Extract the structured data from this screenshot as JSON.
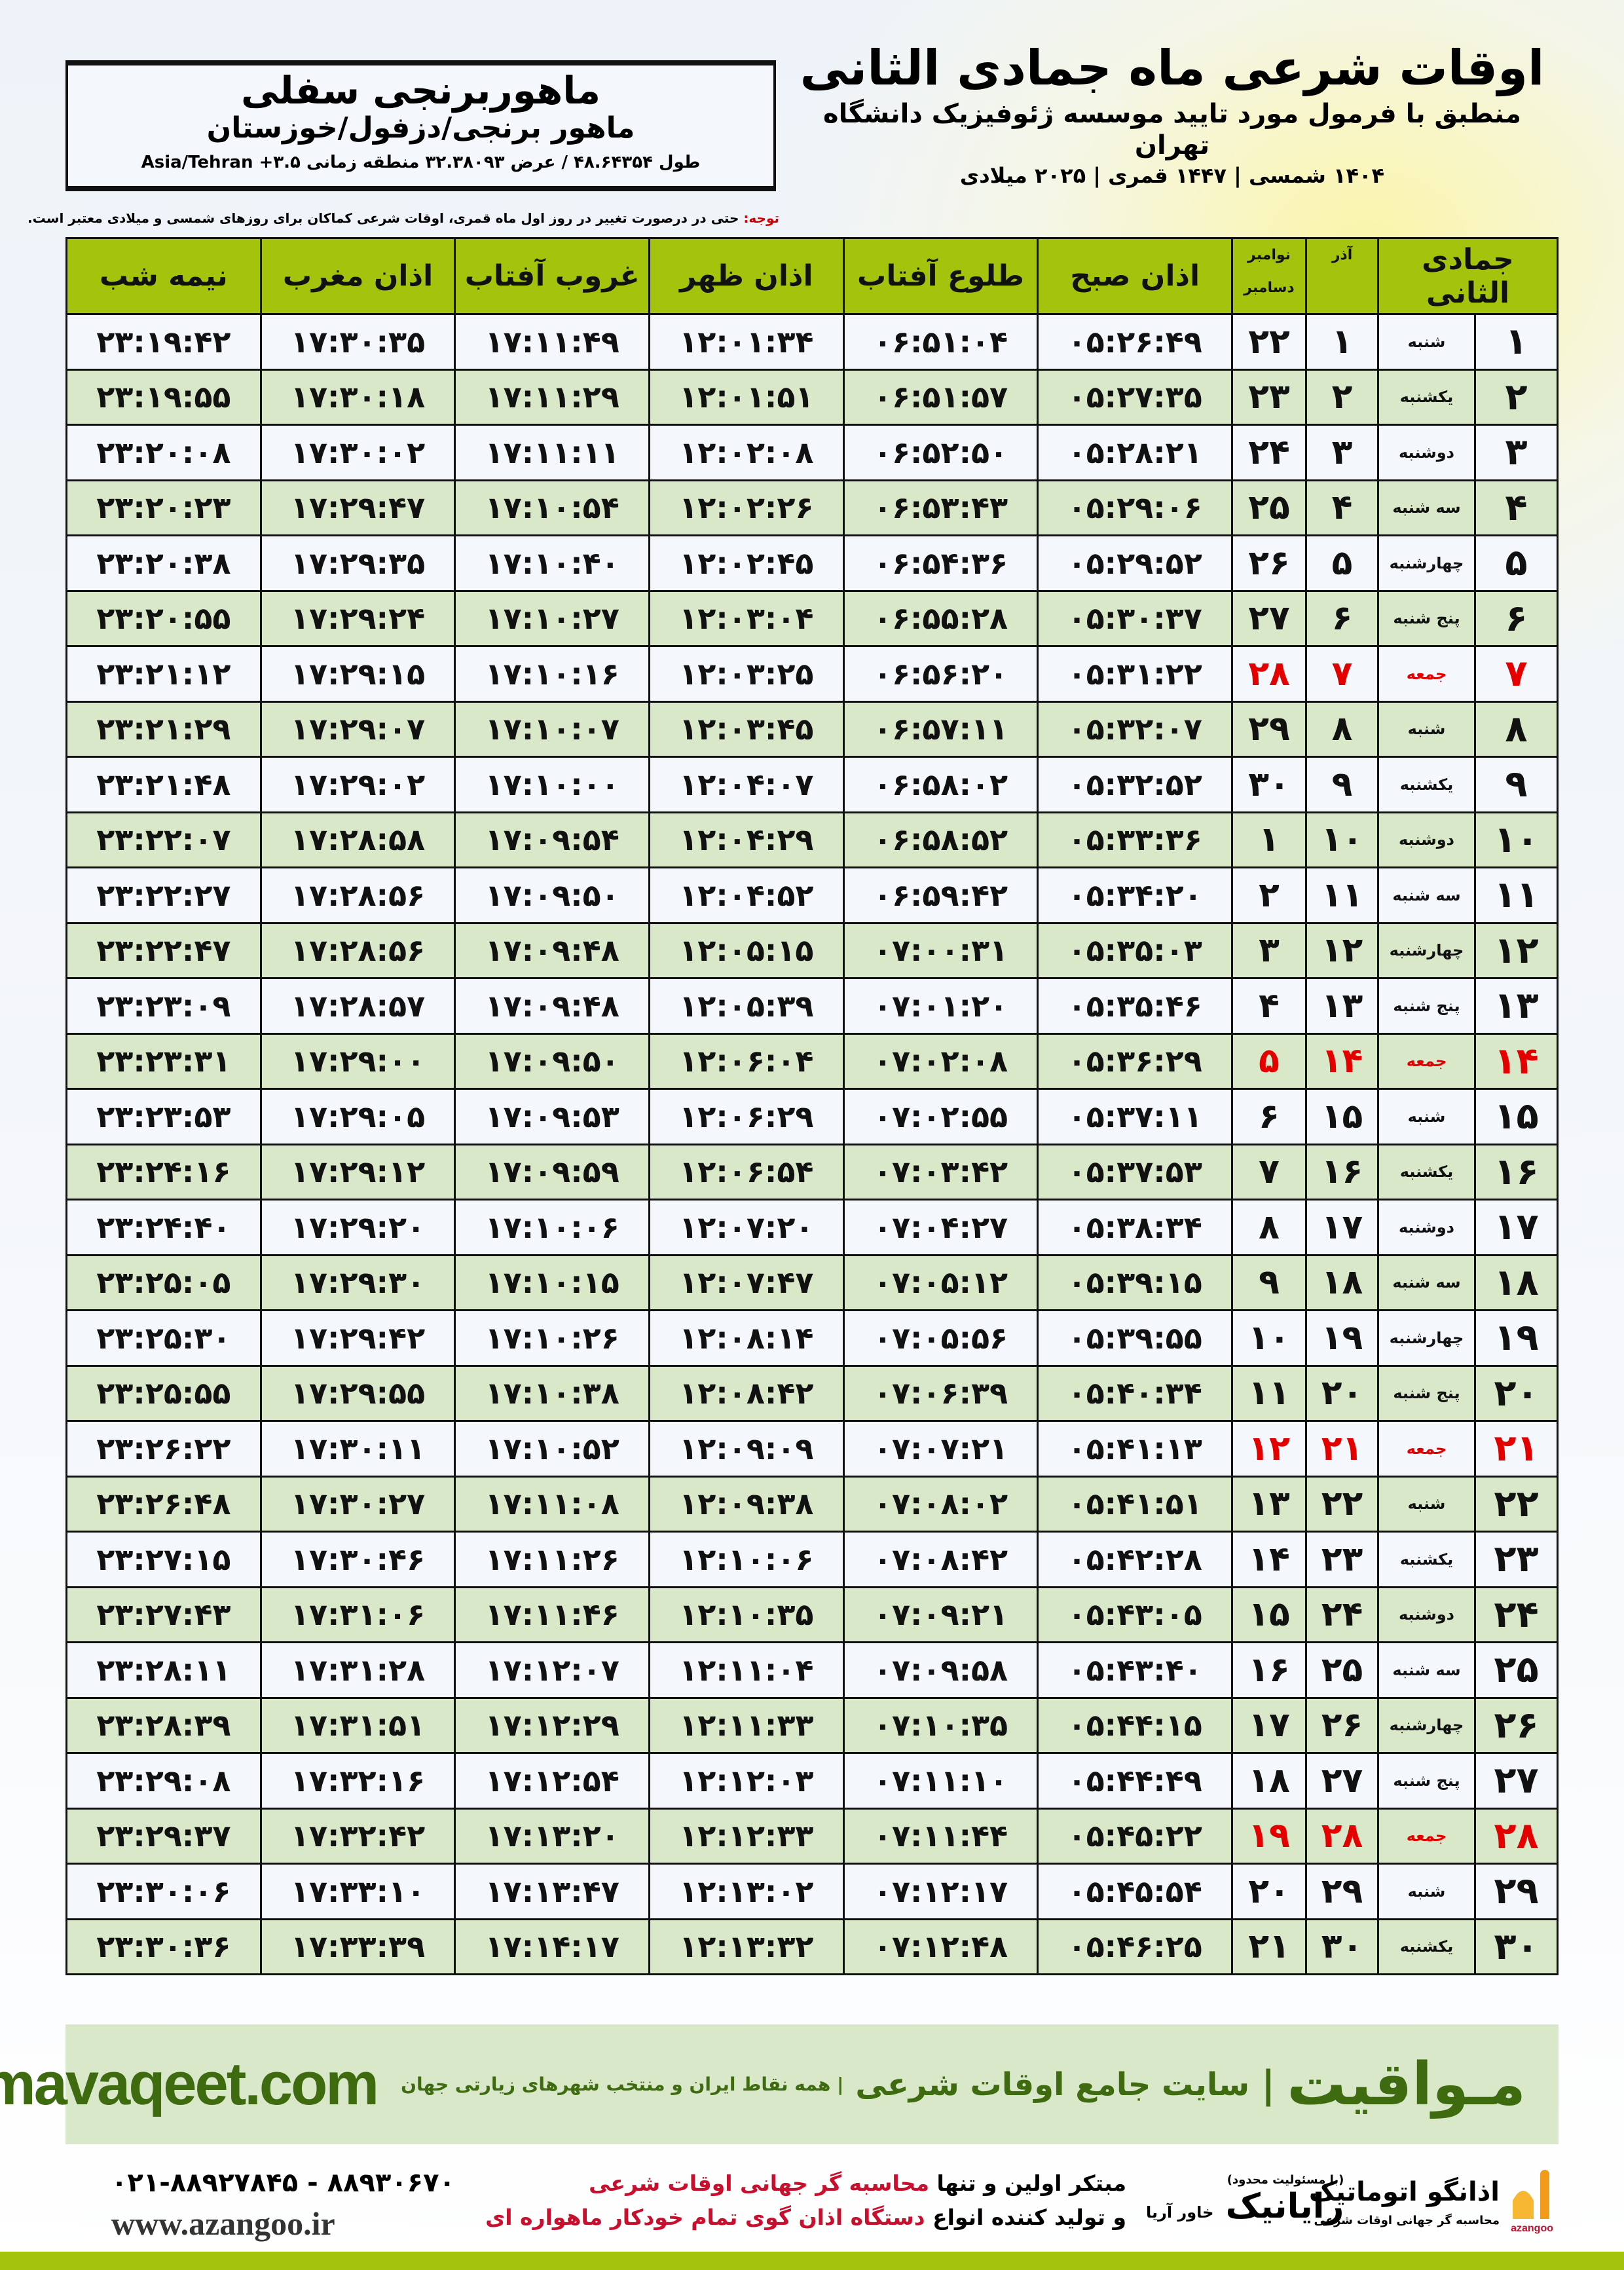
{
  "header": {
    "title": "اوقات شرعی ماه جمادی الثانی",
    "subtitle": "منطبق با فرمول مورد تایید موسسه ژئوفیزیک دانشگاه تهران",
    "years": "۱۴۰۴ شمسی | ۱۴۴۷ قمری | ۲۰۲۵ میلادی"
  },
  "location": {
    "name": "ماهوربرنجی سفلی",
    "region": "ماهور برنجی/دزفول/خوزستان",
    "coords": "طول ۴۸.۶۴۳۵۴ / عرض ۳۲.۳۸۰۹۳ منطقه زمانی ۳.۵+ Asia/Tehran"
  },
  "note": {
    "label": "توجه:",
    "text": " حتی در درصورت تغییر در روز اول ماه قمری، اوقات شرعی کماکان برای روزهای شمسی و میلادی معتبر است."
  },
  "colors": {
    "header_green": "#a4c30c",
    "row_green": "#d9e8c8",
    "holiday_red": "#e50000",
    "brand_green": "#3e6a10"
  },
  "table": {
    "headers": {
      "hijri": "جمادی الثانی",
      "azar": "آذر",
      "november": "نوامبر",
      "december": "دسامبر",
      "fajr": "اذان صبح",
      "sunrise": "طلوع آفتاب",
      "dhuhr": "اذان ظهر",
      "sunset": "غروب آفتاب",
      "maghrib": "اذان مغرب",
      "midnight": "نیمه شب"
    },
    "rows": [
      [
        "۱",
        "شنبه",
        "۱",
        "۲۲",
        "۰۵:۲۶:۴۹",
        "۰۶:۵۱:۰۴",
        "۱۲:۰۱:۳۴",
        "۱۷:۱۱:۴۹",
        "۱۷:۳۰:۳۵",
        "۲۳:۱۹:۴۲",
        false
      ],
      [
        "۲",
        "یکشنبه",
        "۲",
        "۲۳",
        "۰۵:۲۷:۳۵",
        "۰۶:۵۱:۵۷",
        "۱۲:۰۱:۵۱",
        "۱۷:۱۱:۲۹",
        "۱۷:۳۰:۱۸",
        "۲۳:۱۹:۵۵",
        false
      ],
      [
        "۳",
        "دوشنبه",
        "۳",
        "۲۴",
        "۰۵:۲۸:۲۱",
        "۰۶:۵۲:۵۰",
        "۱۲:۰۲:۰۸",
        "۱۷:۱۱:۱۱",
        "۱۷:۳۰:۰۲",
        "۲۳:۲۰:۰۸",
        false
      ],
      [
        "۴",
        "سه شنبه",
        "۴",
        "۲۵",
        "۰۵:۲۹:۰۶",
        "۰۶:۵۳:۴۳",
        "۱۲:۰۲:۲۶",
        "۱۷:۱۰:۵۴",
        "۱۷:۲۹:۴۷",
        "۲۳:۲۰:۲۳",
        false
      ],
      [
        "۵",
        "چهارشنبه",
        "۵",
        "۲۶",
        "۰۵:۲۹:۵۲",
        "۰۶:۵۴:۳۶",
        "۱۲:۰۲:۴۵",
        "۱۷:۱۰:۴۰",
        "۱۷:۲۹:۳۵",
        "۲۳:۲۰:۳۸",
        false
      ],
      [
        "۶",
        "پنج شنبه",
        "۶",
        "۲۷",
        "۰۵:۳۰:۳۷",
        "۰۶:۵۵:۲۸",
        "۱۲:۰۳:۰۴",
        "۱۷:۱۰:۲۷",
        "۱۷:۲۹:۲۴",
        "۲۳:۲۰:۵۵",
        false
      ],
      [
        "۷",
        "جمعه",
        "۷",
        "۲۸",
        "۰۵:۳۱:۲۲",
        "۰۶:۵۶:۲۰",
        "۱۲:۰۳:۲۵",
        "۱۷:۱۰:۱۶",
        "۱۷:۲۹:۱۵",
        "۲۳:۲۱:۱۲",
        true
      ],
      [
        "۸",
        "شنبه",
        "۸",
        "۲۹",
        "۰۵:۳۲:۰۷",
        "۰۶:۵۷:۱۱",
        "۱۲:۰۳:۴۵",
        "۱۷:۱۰:۰۷",
        "۱۷:۲۹:۰۷",
        "۲۳:۲۱:۲۹",
        false
      ],
      [
        "۹",
        "یکشنبه",
        "۹",
        "۳۰",
        "۰۵:۳۲:۵۲",
        "۰۶:۵۸:۰۲",
        "۱۲:۰۴:۰۷",
        "۱۷:۱۰:۰۰",
        "۱۷:۲۹:۰۲",
        "۲۳:۲۱:۴۸",
        false
      ],
      [
        "۱۰",
        "دوشنبه",
        "۱۰",
        "۱",
        "۰۵:۳۳:۳۶",
        "۰۶:۵۸:۵۲",
        "۱۲:۰۴:۲۹",
        "۱۷:۰۹:۵۴",
        "۱۷:۲۸:۵۸",
        "۲۳:۲۲:۰۷",
        false
      ],
      [
        "۱۱",
        "سه شنبه",
        "۱۱",
        "۲",
        "۰۵:۳۴:۲۰",
        "۰۶:۵۹:۴۲",
        "۱۲:۰۴:۵۲",
        "۱۷:۰۹:۵۰",
        "۱۷:۲۸:۵۶",
        "۲۳:۲۲:۲۷",
        false
      ],
      [
        "۱۲",
        "چهارشنبه",
        "۱۲",
        "۳",
        "۰۵:۳۵:۰۳",
        "۰۷:۰۰:۳۱",
        "۱۲:۰۵:۱۵",
        "۱۷:۰۹:۴۸",
        "۱۷:۲۸:۵۶",
        "۲۳:۲۲:۴۷",
        false
      ],
      [
        "۱۳",
        "پنج شنبه",
        "۱۳",
        "۴",
        "۰۵:۳۵:۴۶",
        "۰۷:۰۱:۲۰",
        "۱۲:۰۵:۳۹",
        "۱۷:۰۹:۴۸",
        "۱۷:۲۸:۵۷",
        "۲۳:۲۳:۰۹",
        false
      ],
      [
        "۱۴",
        "جمعه",
        "۱۴",
        "۵",
        "۰۵:۳۶:۲۹",
        "۰۷:۰۲:۰۸",
        "۱۲:۰۶:۰۴",
        "۱۷:۰۹:۵۰",
        "۱۷:۲۹:۰۰",
        "۲۳:۲۳:۳۱",
        true
      ],
      [
        "۱۵",
        "شنبه",
        "۱۵",
        "۶",
        "۰۵:۳۷:۱۱",
        "۰۷:۰۲:۵۵",
        "۱۲:۰۶:۲۹",
        "۱۷:۰۹:۵۳",
        "۱۷:۲۹:۰۵",
        "۲۳:۲۳:۵۳",
        false
      ],
      [
        "۱۶",
        "یکشنبه",
        "۱۶",
        "۷",
        "۰۵:۳۷:۵۳",
        "۰۷:۰۳:۴۲",
        "۱۲:۰۶:۵۴",
        "۱۷:۰۹:۵۹",
        "۱۷:۲۹:۱۲",
        "۲۳:۲۴:۱۶",
        false
      ],
      [
        "۱۷",
        "دوشنبه",
        "۱۷",
        "۸",
        "۰۵:۳۸:۳۴",
        "۰۷:۰۴:۲۷",
        "۱۲:۰۷:۲۰",
        "۱۷:۱۰:۰۶",
        "۱۷:۲۹:۲۰",
        "۲۳:۲۴:۴۰",
        false
      ],
      [
        "۱۸",
        "سه شنبه",
        "۱۸",
        "۹",
        "۰۵:۳۹:۱۵",
        "۰۷:۰۵:۱۲",
        "۱۲:۰۷:۴۷",
        "۱۷:۱۰:۱۵",
        "۱۷:۲۹:۳۰",
        "۲۳:۲۵:۰۵",
        false
      ],
      [
        "۱۹",
        "چهارشنبه",
        "۱۹",
        "۱۰",
        "۰۵:۳۹:۵۵",
        "۰۷:۰۵:۵۶",
        "۱۲:۰۸:۱۴",
        "۱۷:۱۰:۲۶",
        "۱۷:۲۹:۴۲",
        "۲۳:۲۵:۳۰",
        false
      ],
      [
        "۲۰",
        "پنج شنبه",
        "۲۰",
        "۱۱",
        "۰۵:۴۰:۳۴",
        "۰۷:۰۶:۳۹",
        "۱۲:۰۸:۴۲",
        "۱۷:۱۰:۳۸",
        "۱۷:۲۹:۵۵",
        "۲۳:۲۵:۵۵",
        false
      ],
      [
        "۲۱",
        "جمعه",
        "۲۱",
        "۱۲",
        "۰۵:۴۱:۱۳",
        "۰۷:۰۷:۲۱",
        "۱۲:۰۹:۰۹",
        "۱۷:۱۰:۵۲",
        "۱۷:۳۰:۱۱",
        "۲۳:۲۶:۲۲",
        true
      ],
      [
        "۲۲",
        "شنبه",
        "۲۲",
        "۱۳",
        "۰۵:۴۱:۵۱",
        "۰۷:۰۸:۰۲",
        "۱۲:۰۹:۳۸",
        "۱۷:۱۱:۰۸",
        "۱۷:۳۰:۲۷",
        "۲۳:۲۶:۴۸",
        false
      ],
      [
        "۲۳",
        "یکشنبه",
        "۲۳",
        "۱۴",
        "۰۵:۴۲:۲۸",
        "۰۷:۰۸:۴۲",
        "۱۲:۱۰:۰۶",
        "۱۷:۱۱:۲۶",
        "۱۷:۳۰:۴۶",
        "۲۳:۲۷:۱۵",
        false
      ],
      [
        "۲۴",
        "دوشنبه",
        "۲۴",
        "۱۵",
        "۰۵:۴۳:۰۵",
        "۰۷:۰۹:۲۱",
        "۱۲:۱۰:۳۵",
        "۱۷:۱۱:۴۶",
        "۱۷:۳۱:۰۶",
        "۲۳:۲۷:۴۳",
        false
      ],
      [
        "۲۵",
        "سه شنبه",
        "۲۵",
        "۱۶",
        "۰۵:۴۳:۴۰",
        "۰۷:۰۹:۵۸",
        "۱۲:۱۱:۰۴",
        "۱۷:۱۲:۰۷",
        "۱۷:۳۱:۲۸",
        "۲۳:۲۸:۱۱",
        false
      ],
      [
        "۲۶",
        "چهارشنبه",
        "۲۶",
        "۱۷",
        "۰۵:۴۴:۱۵",
        "۰۷:۱۰:۳۵",
        "۱۲:۱۱:۳۳",
        "۱۷:۱۲:۲۹",
        "۱۷:۳۱:۵۱",
        "۲۳:۲۸:۳۹",
        false
      ],
      [
        "۲۷",
        "پنج شنبه",
        "۲۷",
        "۱۸",
        "۰۵:۴۴:۴۹",
        "۰۷:۱۱:۱۰",
        "۱۲:۱۲:۰۳",
        "۱۷:۱۲:۵۴",
        "۱۷:۳۲:۱۶",
        "۲۳:۲۹:۰۸",
        false
      ],
      [
        "۲۸",
        "جمعه",
        "۲۸",
        "۱۹",
        "۰۵:۴۵:۲۲",
        "۰۷:۱۱:۴۴",
        "۱۲:۱۲:۳۳",
        "۱۷:۱۳:۲۰",
        "۱۷:۳۲:۴۲",
        "۲۳:۲۹:۳۷",
        true
      ],
      [
        "۲۹",
        "شنبه",
        "۲۹",
        "۲۰",
        "۰۵:۴۵:۵۴",
        "۰۷:۱۲:۱۷",
        "۱۲:۱۳:۰۲",
        "۱۷:۱۳:۴۷",
        "۱۷:۳۳:۱۰",
        "۲۳:۳۰:۰۶",
        false
      ],
      [
        "۳۰",
        "یکشنبه",
        "۳۰",
        "۲۱",
        "۰۵:۴۶:۲۵",
        "۰۷:۱۲:۴۸",
        "۱۲:۱۳:۳۲",
        "۱۷:۱۴:۱۷",
        "۱۷:۳۳:۳۹",
        "۲۳:۳۰:۳۶",
        false
      ]
    ]
  },
  "promo": {
    "brand": "مـواقیت",
    "separator": "|",
    "tagline": "سایت جامع اوقات شرعی",
    "tagline2": "| همه نقاط ایران و منتخب شهرهای زیارتی جهان",
    "site": "mavaqeet.com"
  },
  "footer": {
    "phone": "۰۲۱-۸۸۹۲۷۸۴۵ - ۸۸۹۳۰۶۷۰",
    "web": "www.azangoo.ir",
    "slogan1a": "مبتکر اولین و تنها ",
    "slogan1b": "محاسبه گر جهانی اوقات شرعی",
    "slogan2a": "و تولید کننده انواع ",
    "slogan2b": "دستگاه اذان گوی تمام خودکار ماهواره ای",
    "raya_small": "(با مسئولیت محدود)",
    "raya_name": "رایانیک",
    "raya_sub": "خاور آریا",
    "azan_name": "اذانگو اتوماتیک",
    "azan_sub": "محاسبه گر جهانی اوقات شرعی",
    "azan_en": "azangoo"
  }
}
